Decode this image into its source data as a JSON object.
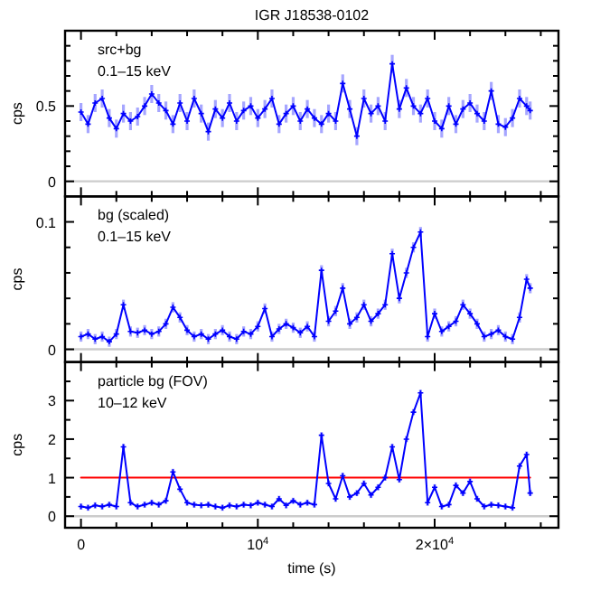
{
  "chart_data": [
    {
      "type": "line",
      "title": "IGR J18538-0102",
      "ylabel": "cps",
      "annotations": [
        "src+bg",
        "0.1–15 keV"
      ],
      "tick_labels": "y",
      "marker": "cross",
      "line_style": "solid",
      "xlim": [
        -900,
        27000
      ],
      "xticks": [
        {
          "value": 0,
          "label": null
        },
        {
          "value": 2000,
          "label": null
        },
        {
          "value": 4000,
          "label": null
        },
        {
          "value": 6000,
          "label": null
        },
        {
          "value": 8000,
          "label": null
        },
        {
          "value": 10000,
          "label": null
        },
        {
          "value": 12000,
          "label": null
        },
        {
          "value": 14000,
          "label": null
        },
        {
          "value": 16000,
          "label": null
        },
        {
          "value": 18000,
          "label": null
        },
        {
          "value": 20000,
          "label": null
        },
        {
          "value": 22000,
          "label": null
        },
        {
          "value": 24000,
          "label": null
        },
        {
          "value": 26000,
          "label": null
        }
      ],
      "ylim": [
        -0.1,
        1.0
      ],
      "yticks": [
        0,
        {
          "value": 0.1,
          "label": null
        },
        {
          "value": 0.2,
          "label": null
        },
        {
          "value": 0.3,
          "label": null
        },
        {
          "value": 0.4,
          "label": null
        },
        0.5,
        {
          "value": 0.6,
          "label": null
        },
        {
          "value": 0.7,
          "label": null
        },
        {
          "value": 0.8,
          "label": null
        },
        {
          "value": 0.9,
          "label": null
        }
      ],
      "ref_lines": [
        {
          "axis": "y",
          "value": 0,
          "color": "#cccccc"
        }
      ],
      "x": [
        0,
        400,
        800,
        1200,
        1600,
        2000,
        2400,
        2800,
        3200,
        3600,
        4000,
        4400,
        4800,
        5200,
        5600,
        6000,
        6400,
        6800,
        7200,
        7600,
        8000,
        8400,
        8800,
        9200,
        9600,
        10000,
        10400,
        10800,
        11200,
        11600,
        12000,
        12400,
        12800,
        13200,
        13600,
        14000,
        14400,
        14800,
        15200,
        15600,
        16000,
        16400,
        16800,
        17200,
        17600,
        18000,
        18400,
        18800,
        19200,
        19600,
        20000,
        20400,
        20800,
        21200,
        21600,
        22000,
        22400,
        22800,
        23200,
        23600,
        24000,
        24400,
        24800,
        25200,
        25400
      ],
      "series": [
        {
          "color": "#0000ff",
          "values": [
            0.46,
            0.38,
            0.52,
            0.55,
            0.42,
            0.35,
            0.45,
            0.4,
            0.43,
            0.5,
            0.58,
            0.52,
            0.47,
            0.38,
            0.52,
            0.4,
            0.55,
            0.45,
            0.33,
            0.48,
            0.42,
            0.52,
            0.4,
            0.47,
            0.5,
            0.42,
            0.48,
            0.55,
            0.38,
            0.45,
            0.5,
            0.4,
            0.48,
            0.42,
            0.38,
            0.45,
            0.4,
            0.65,
            0.48,
            0.3,
            0.55,
            0.45,
            0.5,
            0.4,
            0.78,
            0.48,
            0.62,
            0.5,
            0.45,
            0.55,
            0.4,
            0.35,
            0.5,
            0.38,
            0.48,
            0.52,
            0.45,
            0.4,
            0.6,
            0.38,
            0.36,
            0.42,
            0.55,
            0.5,
            0.47
          ],
          "errors": [
            0.06,
            0.06,
            0.06,
            0.06,
            0.06,
            0.06,
            0.06,
            0.06,
            0.06,
            0.06,
            0.06,
            0.06,
            0.06,
            0.06,
            0.06,
            0.06,
            0.06,
            0.06,
            0.06,
            0.06,
            0.06,
            0.06,
            0.06,
            0.06,
            0.06,
            0.06,
            0.06,
            0.06,
            0.06,
            0.06,
            0.06,
            0.06,
            0.06,
            0.06,
            0.06,
            0.06,
            0.06,
            0.06,
            0.06,
            0.06,
            0.06,
            0.06,
            0.06,
            0.06,
            0.06,
            0.06,
            0.06,
            0.06,
            0.06,
            0.06,
            0.06,
            0.06,
            0.06,
            0.06,
            0.06,
            0.06,
            0.06,
            0.06,
            0.06,
            0.06,
            0.06,
            0.06,
            0.06,
            0.06,
            0.06
          ]
        }
      ]
    },
    {
      "type": "line",
      "ylabel": "cps",
      "annotations": [
        "bg (scaled)",
        "0.1–15 keV"
      ],
      "tick_labels": "y",
      "marker": "cross",
      "line_style": "solid",
      "xlim": [
        -900,
        27000
      ],
      "xticks": [
        {
          "value": 0,
          "label": null
        },
        {
          "value": 2000,
          "label": null
        },
        {
          "value": 4000,
          "label": null
        },
        {
          "value": 6000,
          "label": null
        },
        {
          "value": 8000,
          "label": null
        },
        {
          "value": 10000,
          "label": null
        },
        {
          "value": 12000,
          "label": null
        },
        {
          "value": 14000,
          "label": null
        },
        {
          "value": 16000,
          "label": null
        },
        {
          "value": 18000,
          "label": null
        },
        {
          "value": 20000,
          "label": null
        },
        {
          "value": 22000,
          "label": null
        },
        {
          "value": 24000,
          "label": null
        },
        {
          "value": 26000,
          "label": null
        }
      ],
      "ylim": [
        -0.01,
        0.12
      ],
      "yticks": [
        0,
        {
          "value": 0.02,
          "label": null
        },
        {
          "value": 0.04,
          "label": null
        },
        {
          "value": 0.06,
          "label": null
        },
        {
          "value": 0.08,
          "label": null
        },
        0.1
      ],
      "ref_lines": [
        {
          "axis": "y",
          "value": 0,
          "color": "#cccccc"
        }
      ],
      "x": [
        0,
        400,
        800,
        1200,
        1600,
        2000,
        2400,
        2800,
        3200,
        3600,
        4000,
        4400,
        4800,
        5200,
        5600,
        6000,
        6400,
        6800,
        7200,
        7600,
        8000,
        8400,
        8800,
        9200,
        9600,
        10000,
        10400,
        10800,
        11200,
        11600,
        12000,
        12400,
        12800,
        13200,
        13600,
        14000,
        14400,
        14800,
        15200,
        15600,
        16000,
        16400,
        16800,
        17200,
        17600,
        18000,
        18400,
        18800,
        19200,
        19600,
        20000,
        20400,
        20800,
        21200,
        21600,
        22000,
        22400,
        22800,
        23200,
        23600,
        24000,
        24400,
        24800,
        25200,
        25400
      ],
      "series": [
        {
          "color": "#0000ff",
          "values": [
            0.01,
            0.012,
            0.008,
            0.01,
            0.006,
            0.012,
            0.035,
            0.014,
            0.013,
            0.015,
            0.012,
            0.014,
            0.02,
            0.033,
            0.025,
            0.015,
            0.01,
            0.012,
            0.008,
            0.012,
            0.015,
            0.01,
            0.008,
            0.014,
            0.012,
            0.018,
            0.032,
            0.01,
            0.016,
            0.02,
            0.017,
            0.013,
            0.018,
            0.01,
            0.062,
            0.022,
            0.03,
            0.048,
            0.02,
            0.025,
            0.035,
            0.022,
            0.028,
            0.035,
            0.075,
            0.04,
            0.06,
            0.08,
            0.092,
            0.01,
            0.028,
            0.014,
            0.018,
            0.022,
            0.035,
            0.028,
            0.02,
            0.01,
            0.012,
            0.015,
            0.01,
            0.008,
            0.025,
            0.055,
            0.048
          ],
          "errors": [
            0.004,
            0.004,
            0.004,
            0.004,
            0.004,
            0.004,
            0.004,
            0.004,
            0.004,
            0.004,
            0.004,
            0.004,
            0.004,
            0.004,
            0.004,
            0.004,
            0.004,
            0.004,
            0.004,
            0.004,
            0.004,
            0.004,
            0.004,
            0.004,
            0.004,
            0.004,
            0.004,
            0.004,
            0.004,
            0.004,
            0.004,
            0.004,
            0.004,
            0.004,
            0.004,
            0.004,
            0.004,
            0.004,
            0.004,
            0.004,
            0.004,
            0.004,
            0.004,
            0.004,
            0.004,
            0.004,
            0.004,
            0.004,
            0.004,
            0.004,
            0.004,
            0.004,
            0.004,
            0.004,
            0.004,
            0.004,
            0.004,
            0.004,
            0.004,
            0.004,
            0.004,
            0.004,
            0.004,
            0.004,
            0.004
          ]
        }
      ]
    },
    {
      "type": "line",
      "ylabel": "cps",
      "xlabel": "time (s)",
      "annotations": [
        "particle bg (FOV)",
        "10–12 keV"
      ],
      "marker": "cross",
      "line_style": "solid",
      "xlim": [
        -900,
        27000
      ],
      "xticks": [
        0,
        {
          "value": 2000,
          "label": null
        },
        {
          "value": 4000,
          "label": null
        },
        {
          "value": 6000,
          "label": null
        },
        {
          "value": 8000,
          "label": null
        },
        {
          "value": 10000,
          "label": "10$^{4}$"
        },
        {
          "value": 12000,
          "label": null
        },
        {
          "value": 14000,
          "label": null
        },
        {
          "value": 16000,
          "label": null
        },
        {
          "value": 18000,
          "label": null
        },
        {
          "value": 20000,
          "label": "2×10$^{4}$"
        },
        {
          "value": 22000,
          "label": null
        },
        {
          "value": 24000,
          "label": null
        },
        {
          "value": 26000,
          "label": null
        }
      ],
      "ylim": [
        -0.3,
        4
      ],
      "yticks": [
        0,
        {
          "value": 0.5,
          "label": null
        },
        1,
        {
          "value": 1.5,
          "label": null
        },
        2,
        {
          "value": 2.5,
          "label": null
        },
        3,
        {
          "value": 3.5,
          "label": null
        }
      ],
      "ref_lines": [
        {
          "axis": "y",
          "value": 0,
          "color": "#cccccc"
        }
      ],
      "x": [
        0,
        400,
        800,
        1200,
        1600,
        2000,
        2400,
        2800,
        3200,
        3600,
        4000,
        4400,
        4800,
        5200,
        5600,
        6000,
        6400,
        6800,
        7200,
        7600,
        8000,
        8400,
        8800,
        9200,
        9600,
        10000,
        10400,
        10800,
        11200,
        11600,
        12000,
        12400,
        12800,
        13200,
        13600,
        14000,
        14400,
        14800,
        15200,
        15600,
        16000,
        16400,
        16800,
        17200,
        17600,
        18000,
        18400,
        18800,
        19200,
        19600,
        20000,
        20400,
        20800,
        21200,
        21600,
        22000,
        22400,
        22800,
        23200,
        23600,
        24000,
        24400,
        24800,
        25200,
        25400
      ],
      "series": [
        {
          "type": "line",
          "color": "#ff0000",
          "marker": "none",
          "x": [
            0,
            25400
          ],
          "values": [
            1,
            1
          ]
        },
        {
          "color": "#0000ff",
          "values": [
            0.25,
            0.22,
            0.28,
            0.25,
            0.3,
            0.25,
            1.8,
            0.35,
            0.25,
            0.3,
            0.35,
            0.3,
            0.4,
            1.15,
            0.7,
            0.35,
            0.3,
            0.28,
            0.3,
            0.25,
            0.22,
            0.28,
            0.25,
            0.3,
            0.28,
            0.35,
            0.3,
            0.25,
            0.45,
            0.28,
            0.4,
            0.3,
            0.35,
            0.3,
            2.1,
            0.85,
            0.45,
            1.05,
            0.5,
            0.6,
            0.85,
            0.55,
            0.75,
            1.0,
            1.8,
            0.95,
            2.0,
            2.7,
            3.2,
            0.35,
            0.75,
            0.25,
            0.3,
            0.8,
            0.6,
            0.9,
            0.45,
            0.25,
            0.3,
            0.28,
            0.25,
            0.22,
            1.3,
            1.6,
            0.6
          ],
          "errors": [
            0.08,
            0.08,
            0.08,
            0.08,
            0.08,
            0.08,
            0.08,
            0.08,
            0.08,
            0.08,
            0.08,
            0.08,
            0.08,
            0.08,
            0.08,
            0.08,
            0.08,
            0.08,
            0.08,
            0.08,
            0.08,
            0.08,
            0.08,
            0.08,
            0.08,
            0.08,
            0.08,
            0.08,
            0.08,
            0.08,
            0.08,
            0.08,
            0.08,
            0.08,
            0.08,
            0.08,
            0.08,
            0.08,
            0.08,
            0.08,
            0.08,
            0.08,
            0.08,
            0.08,
            0.08,
            0.08,
            0.08,
            0.08,
            0.08,
            0.08,
            0.08,
            0.08,
            0.08,
            0.08,
            0.08,
            0.08,
            0.08,
            0.08,
            0.08,
            0.08,
            0.08,
            0.08,
            0.08,
            0.08,
            0.08
          ]
        }
      ]
    }
  ]
}
